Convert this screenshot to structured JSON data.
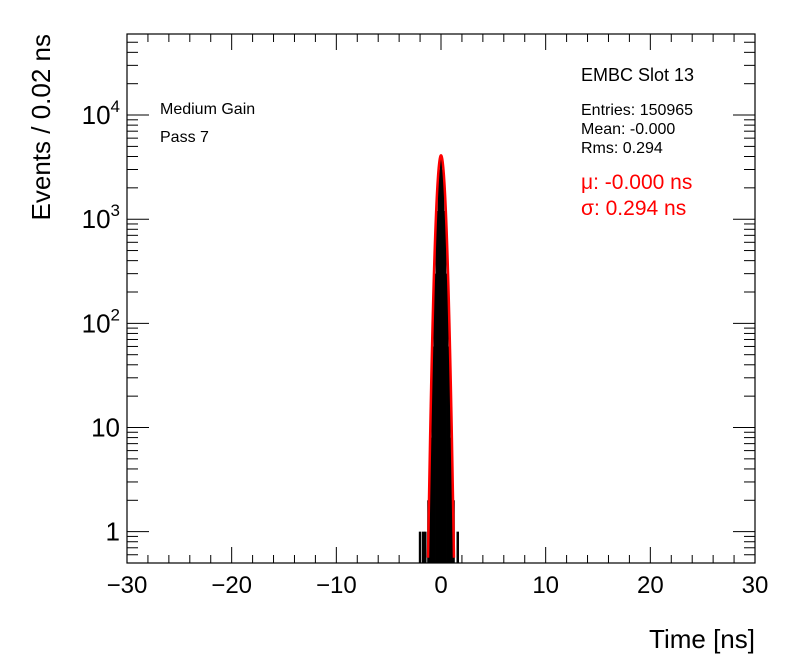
{
  "chart_data": {
    "type": "histogram",
    "xlabel": "Time [ns]",
    "ylabel": "Events / 0.02 ns",
    "xlim": [
      -30,
      30
    ],
    "ylim": [
      0.5,
      60000
    ],
    "yscale": "log",
    "x_ticks": [
      "−30",
      "−20",
      "−10",
      "0",
      "10",
      "20",
      "30"
    ],
    "x_tick_values": [
      -30,
      -20,
      -10,
      0,
      10,
      20,
      30
    ],
    "y_ticks": [
      {
        "value": 1,
        "base": "1",
        "exp": ""
      },
      {
        "value": 10,
        "base": "10",
        "exp": ""
      },
      {
        "value": 100,
        "base": "10",
        "exp": "2"
      },
      {
        "value": 1000,
        "base": "10",
        "exp": "3"
      },
      {
        "value": 10000,
        "base": "10",
        "exp": "4"
      }
    ],
    "bin_width": 0.02,
    "histogram": [
      {
        "x": -2.0,
        "y": 1
      },
      {
        "x": -1.7,
        "y": 1
      },
      {
        "x": -1.5,
        "y": 1
      },
      {
        "x": -1.2,
        "y": 2
      },
      {
        "x": -1.0,
        "y": 8
      },
      {
        "x": -0.8,
        "y": 60
      },
      {
        "x": -0.6,
        "y": 300
      },
      {
        "x": -0.4,
        "y": 1200
      },
      {
        "x": -0.2,
        "y": 3000
      },
      {
        "x": 0.0,
        "y": 4000
      },
      {
        "x": 0.2,
        "y": 3000
      },
      {
        "x": 0.4,
        "y": 1200
      },
      {
        "x": 0.6,
        "y": 300
      },
      {
        "x": 0.8,
        "y": 60
      },
      {
        "x": 1.0,
        "y": 8
      },
      {
        "x": 1.2,
        "y": 2
      },
      {
        "x": 1.6,
        "y": 1
      }
    ],
    "fit": {
      "type": "gaussian",
      "amplitude": 4100,
      "mu": 0.0,
      "sigma": 0.294,
      "color": "#ff0000"
    },
    "hist_color": "#000000"
  },
  "labels": {
    "gain": "Medium Gain",
    "pass": "Pass 7"
  },
  "stats": {
    "title": "EMBC Slot 13",
    "entries": "Entries: 150965",
    "mean": "Mean: -0.000",
    "rms": "Rms: 0.294",
    "mu": "μ: -0.000 ns",
    "sigma": "σ: 0.294 ns"
  }
}
